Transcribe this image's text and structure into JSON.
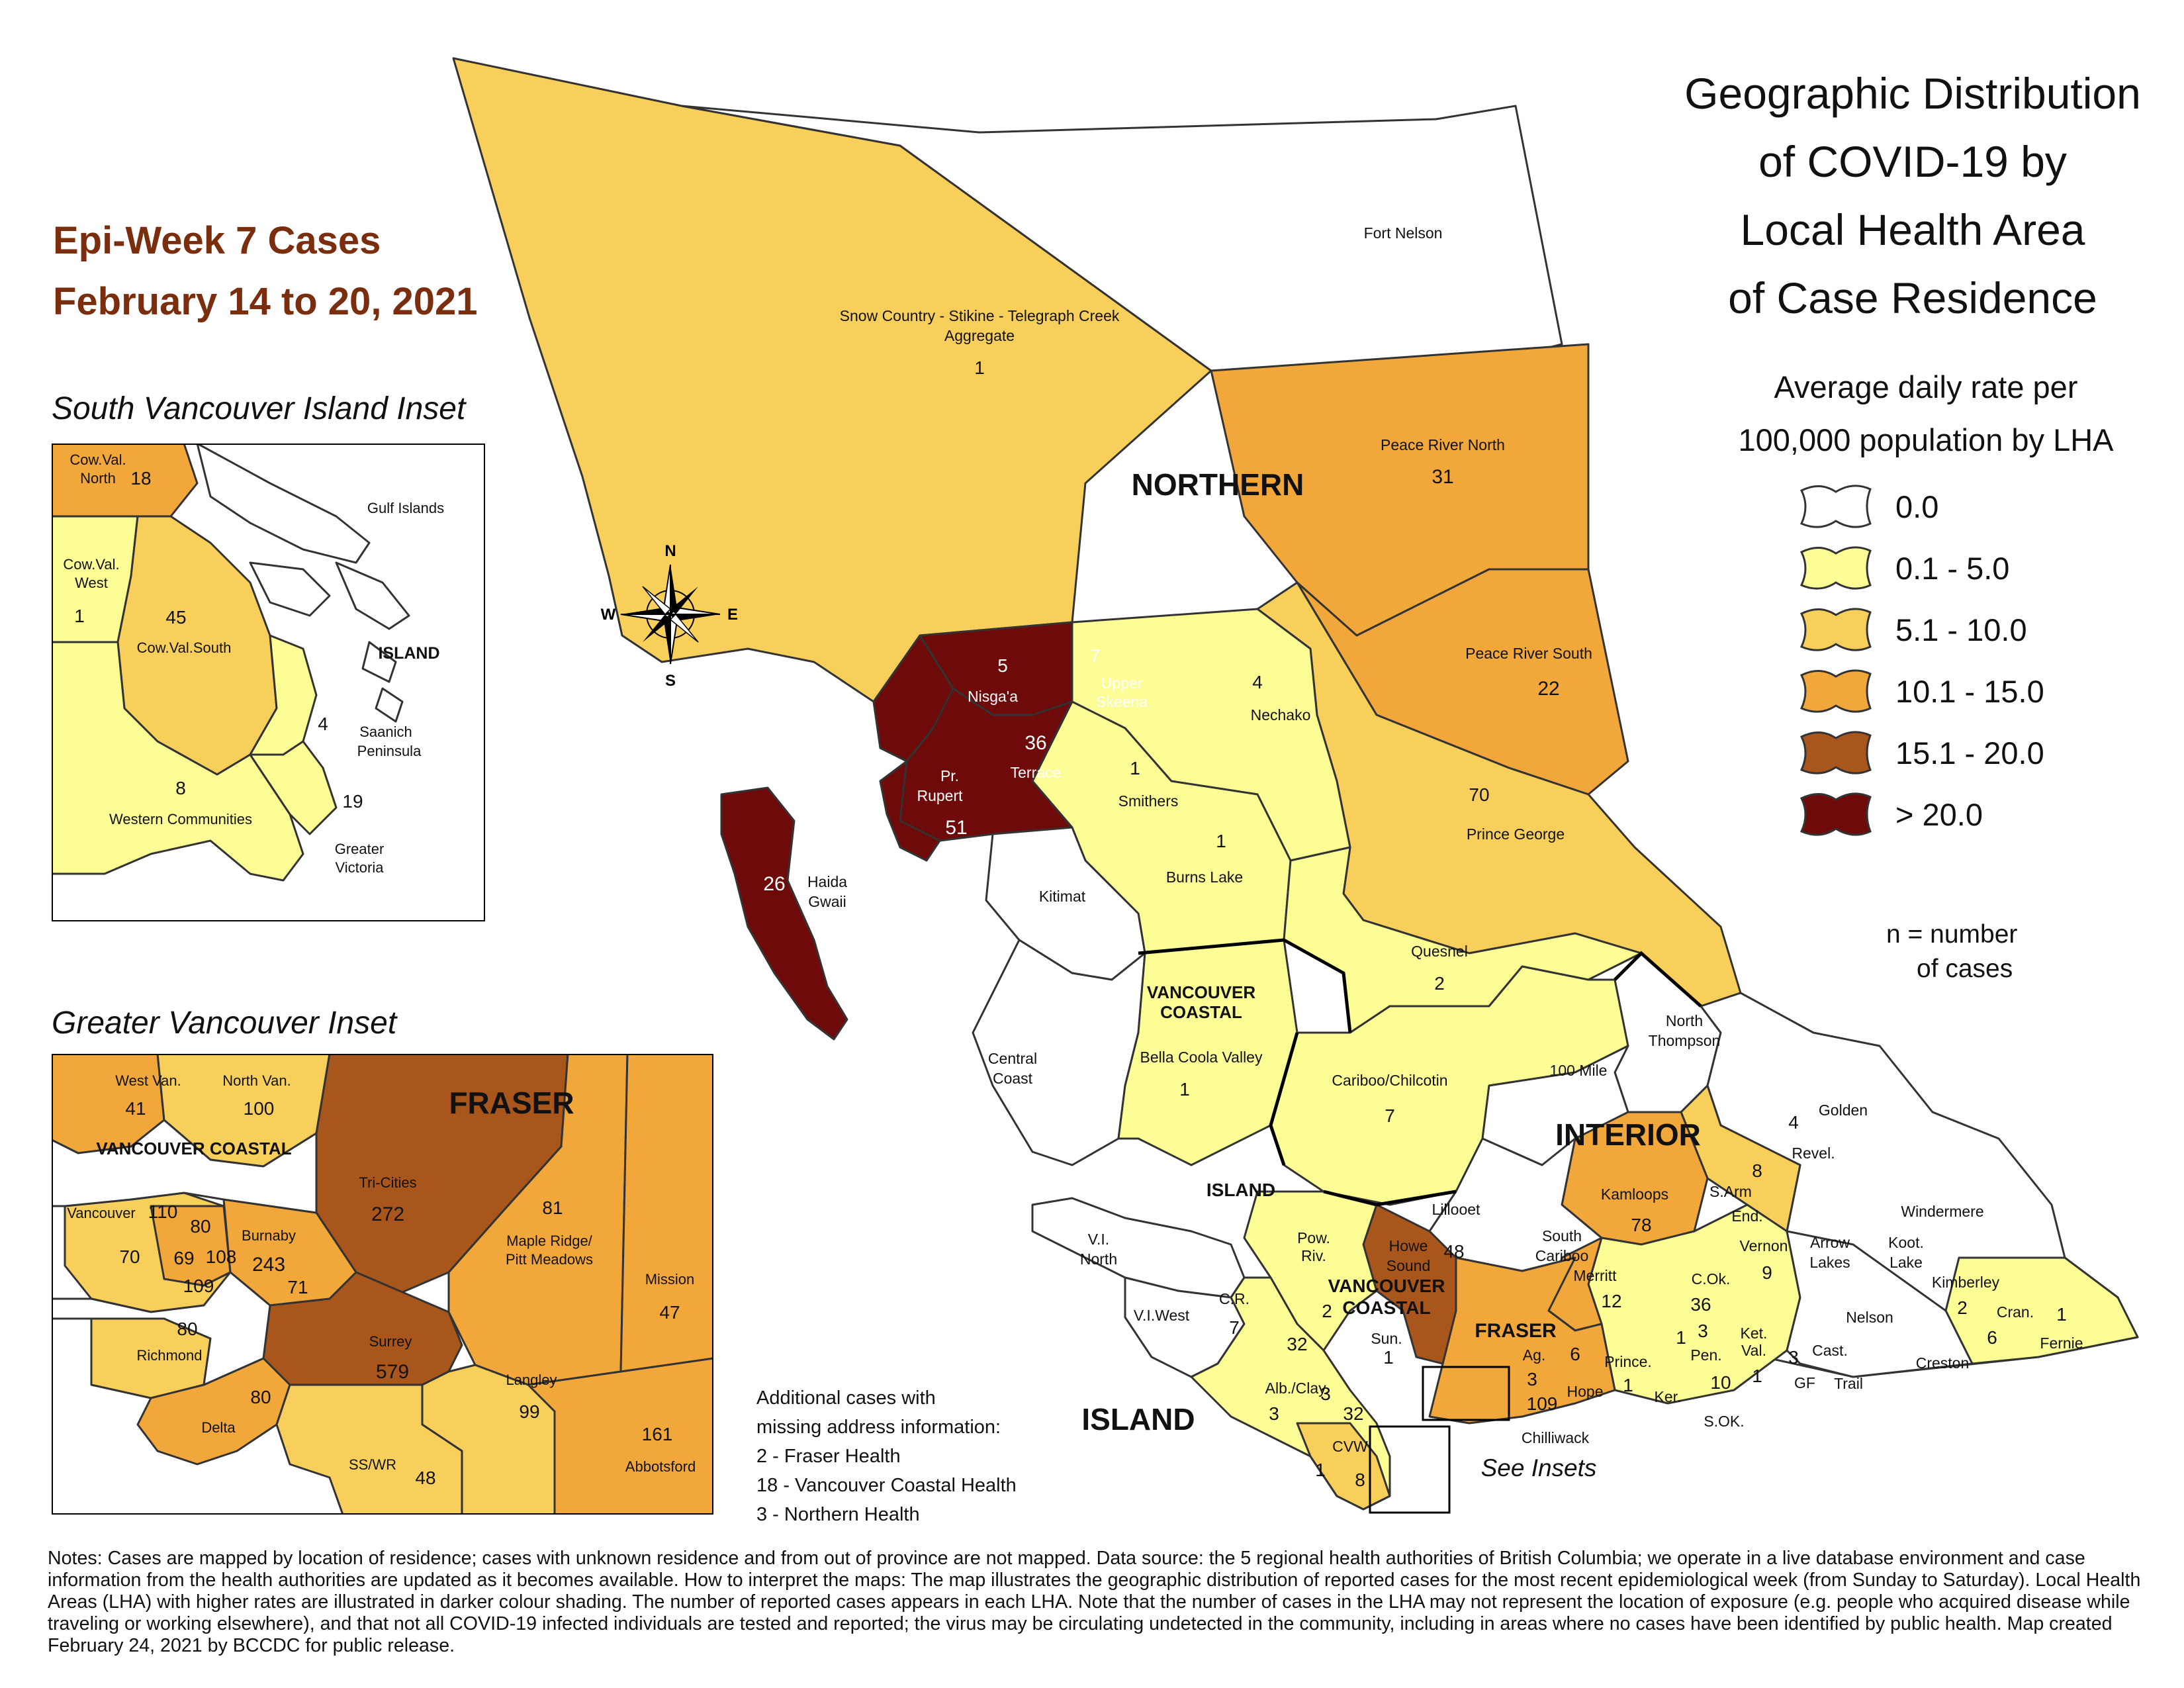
{
  "epi_title": {
    "line1": "Epi-Week 7 Cases",
    "line2": "February 14 to 20, 2021"
  },
  "main_title": [
    "Geographic Distribution",
    "of COVID-19 by",
    "Local Health Area",
    "of Case Residence"
  ],
  "legend": {
    "title": [
      "Average daily rate per",
      "100,000 population by LHA"
    ],
    "items": [
      {
        "label": "0.0",
        "color": "#ffffff"
      },
      {
        "label": "0.1 - 5.0",
        "color": "#fdfd96"
      },
      {
        "label": "5.1 - 10.0",
        "color": "#f9cf5c"
      },
      {
        "label": "10.1 - 15.0",
        "color": "#f1a73a"
      },
      {
        "label": "15.1 - 20.0",
        "color": "#a9561c"
      },
      {
        "label": "> 20.0",
        "color": "#6e0a0a"
      }
    ],
    "n_note": [
      "n = number",
      "of cases"
    ]
  },
  "compass": {
    "n": "N",
    "s": "S",
    "e": "E",
    "w": "W"
  },
  "health_authorities": [
    "NORTHERN",
    "INTERIOR",
    "VANCOUVER COASTAL",
    "FRASER",
    "ISLAND"
  ],
  "main_map_labels": [
    {
      "name": "Fort Nelson",
      "count": ""
    },
    {
      "name": "Snow Country - Stikine - Telegraph Creek Aggregate",
      "count": "1"
    },
    {
      "name": "Peace River North",
      "count": "31"
    },
    {
      "name": "Peace River South",
      "count": "22"
    },
    {
      "name": "Nisga'a",
      "count": "5"
    },
    {
      "name": "Upper Skeena",
      "count": "7"
    },
    {
      "name": "Nechako",
      "count": "4"
    },
    {
      "name": "Terrace",
      "count": "36"
    },
    {
      "name": "Pr. Rupert",
      "count": "51"
    },
    {
      "name": "Smithers",
      "count": "1"
    },
    {
      "name": "Prince George",
      "count": "70"
    },
    {
      "name": "Burns Lake",
      "count": "1"
    },
    {
      "name": "Haida Gwaii",
      "count": "26"
    },
    {
      "name": "Kitimat",
      "count": ""
    },
    {
      "name": "Quesnel",
      "count": "2"
    },
    {
      "name": "North Thompson",
      "count": ""
    },
    {
      "name": "Bella Coola Valley",
      "count": "1"
    },
    {
      "name": "Central Coast",
      "count": ""
    },
    {
      "name": "Cariboo/Chilcotin",
      "count": "7"
    },
    {
      "name": "100 Mile",
      "count": ""
    },
    {
      "name": "Golden",
      "count": ""
    },
    {
      "name": "Revel.",
      "count": "4"
    },
    {
      "name": "Kamloops",
      "count": "78"
    },
    {
      "name": "S.Arm",
      "count": "8"
    },
    {
      "name": "End.",
      "count": ""
    },
    {
      "name": "Lillooet",
      "count": ""
    },
    {
      "name": "Windermere",
      "count": ""
    },
    {
      "name": "Vernon",
      "count": "9"
    },
    {
      "name": "Arrow Lakes",
      "count": ""
    },
    {
      "name": "Koot. Lake",
      "count": ""
    },
    {
      "name": "South Cariboo",
      "count": ""
    },
    {
      "name": "Howe Sound",
      "count": "48"
    },
    {
      "name": "Pow. Riv.",
      "count": "2"
    },
    {
      "name": "V.I. North",
      "count": ""
    },
    {
      "name": "Merritt",
      "count": "12"
    },
    {
      "name": "C.Ok.",
      "count": "36"
    },
    {
      "name": "Kimberley",
      "count": "2"
    },
    {
      "name": "Cran.",
      "count": "6"
    },
    {
      "name": "Fernie",
      "count": "1"
    },
    {
      "name": "V.I.West",
      "count": ""
    },
    {
      "name": "C.R.",
      "count": "7"
    },
    {
      "name": "Sun.",
      "count": "1"
    },
    {
      "name": "Ag.",
      "count": "3"
    },
    {
      "name": "Nelson",
      "count": ""
    },
    {
      "name": "Pen.",
      "count": "3"
    },
    {
      "name": "Ket. Val.",
      "count": "1"
    },
    {
      "name": "Cast.",
      "count": ""
    },
    {
      "name": "Prince.",
      "count": "1"
    },
    {
      "name": "Hope",
      "count": "6"
    },
    {
      "name": "Creston",
      "count": ""
    },
    {
      "name": "GF",
      "count": "3"
    },
    {
      "name": "Trail",
      "count": ""
    },
    {
      "name": "Ker.",
      "count": ""
    },
    {
      "name": "S.OK.",
      "count": "10"
    },
    {
      "name": "Alb./Clay.",
      "count": "3"
    },
    {
      "name": "CVW",
      "count": "32"
    },
    {
      "name": "Chilliwack",
      "count": "109"
    }
  ],
  "main_map_extra_counts": [
    "32",
    "3",
    "1",
    "8",
    "1"
  ],
  "see_insets": "See Insets",
  "south_vi_inset": {
    "title": "South Vancouver Island Inset",
    "labels": [
      {
        "name": "Cow.Val. North",
        "count": "18"
      },
      {
        "name": "Gulf Islands",
        "count": ""
      },
      {
        "name": "Cow.Val. West",
        "count": "1"
      },
      {
        "name": "Cow.Val.South",
        "count": "45"
      },
      {
        "name": "Saanich Peninsula",
        "count": "4"
      },
      {
        "name": "Western Communities",
        "count": "8"
      },
      {
        "name": "Greater Victoria",
        "count": "19"
      }
    ],
    "ha_label": "ISLAND"
  },
  "greater_van_inset": {
    "title": "Greater Vancouver Inset",
    "ha_labels": [
      "FRASER",
      "VANCOUVER COASTAL"
    ],
    "labels": [
      {
        "name": "West Van.",
        "count": "41"
      },
      {
        "name": "North Van.",
        "count": "100"
      },
      {
        "name": "Tri-Cities",
        "count": "272"
      },
      {
        "name": "Maple Ridge/ Pitt Meadows",
        "count": "81"
      },
      {
        "name": "Vancouver",
        "count": "110"
      },
      {
        "name": "Burnaby",
        "count": "243"
      },
      {
        "name": "Mission",
        "count": "47"
      },
      {
        "name": "Richmond",
        "count": "80"
      },
      {
        "name": "Surrey",
        "count": "579"
      },
      {
        "name": "Langley",
        "count": "99"
      },
      {
        "name": "Delta",
        "count": "80"
      },
      {
        "name": "SS/WR",
        "count": "48"
      },
      {
        "name": "Abbotsford",
        "count": "161"
      }
    ],
    "small_counts": [
      "80",
      "70",
      "69",
      "108",
      "109",
      "71"
    ]
  },
  "missing_info": {
    "heading": [
      "Additional cases with",
      "missing address information:"
    ],
    "items": [
      "2 - Fraser Health",
      "18 - Vancouver Coastal Health",
      "3 - Northern Health"
    ]
  },
  "notes": "Notes: Cases are mapped by location of residence; cases with unknown residence and from out of province are not mapped. Data source: the 5 regional health authorities of British Columbia; we operate in a live database environment and case information from the health authorities are updated as it becomes available. How to interpret the maps: The map illustrates the geographic distribution of reported cases for the most recent epidemiological week (from Sunday to Saturday). Local Health Areas (LHA) with higher rates are illustrated in darker colour shading. The number of reported cases appears in each LHA. Note that the number of cases in the LHA may not represent the location of exposure (e.g. people who acquired disease while traveling or working elsewhere), and that not all COVID-19 infected individuals are tested and reported; the virus may be circulating undetected in the community, including in areas where no cases have been identified by public health. Map created February 24, 2021 by BCCDC for public release."
}
